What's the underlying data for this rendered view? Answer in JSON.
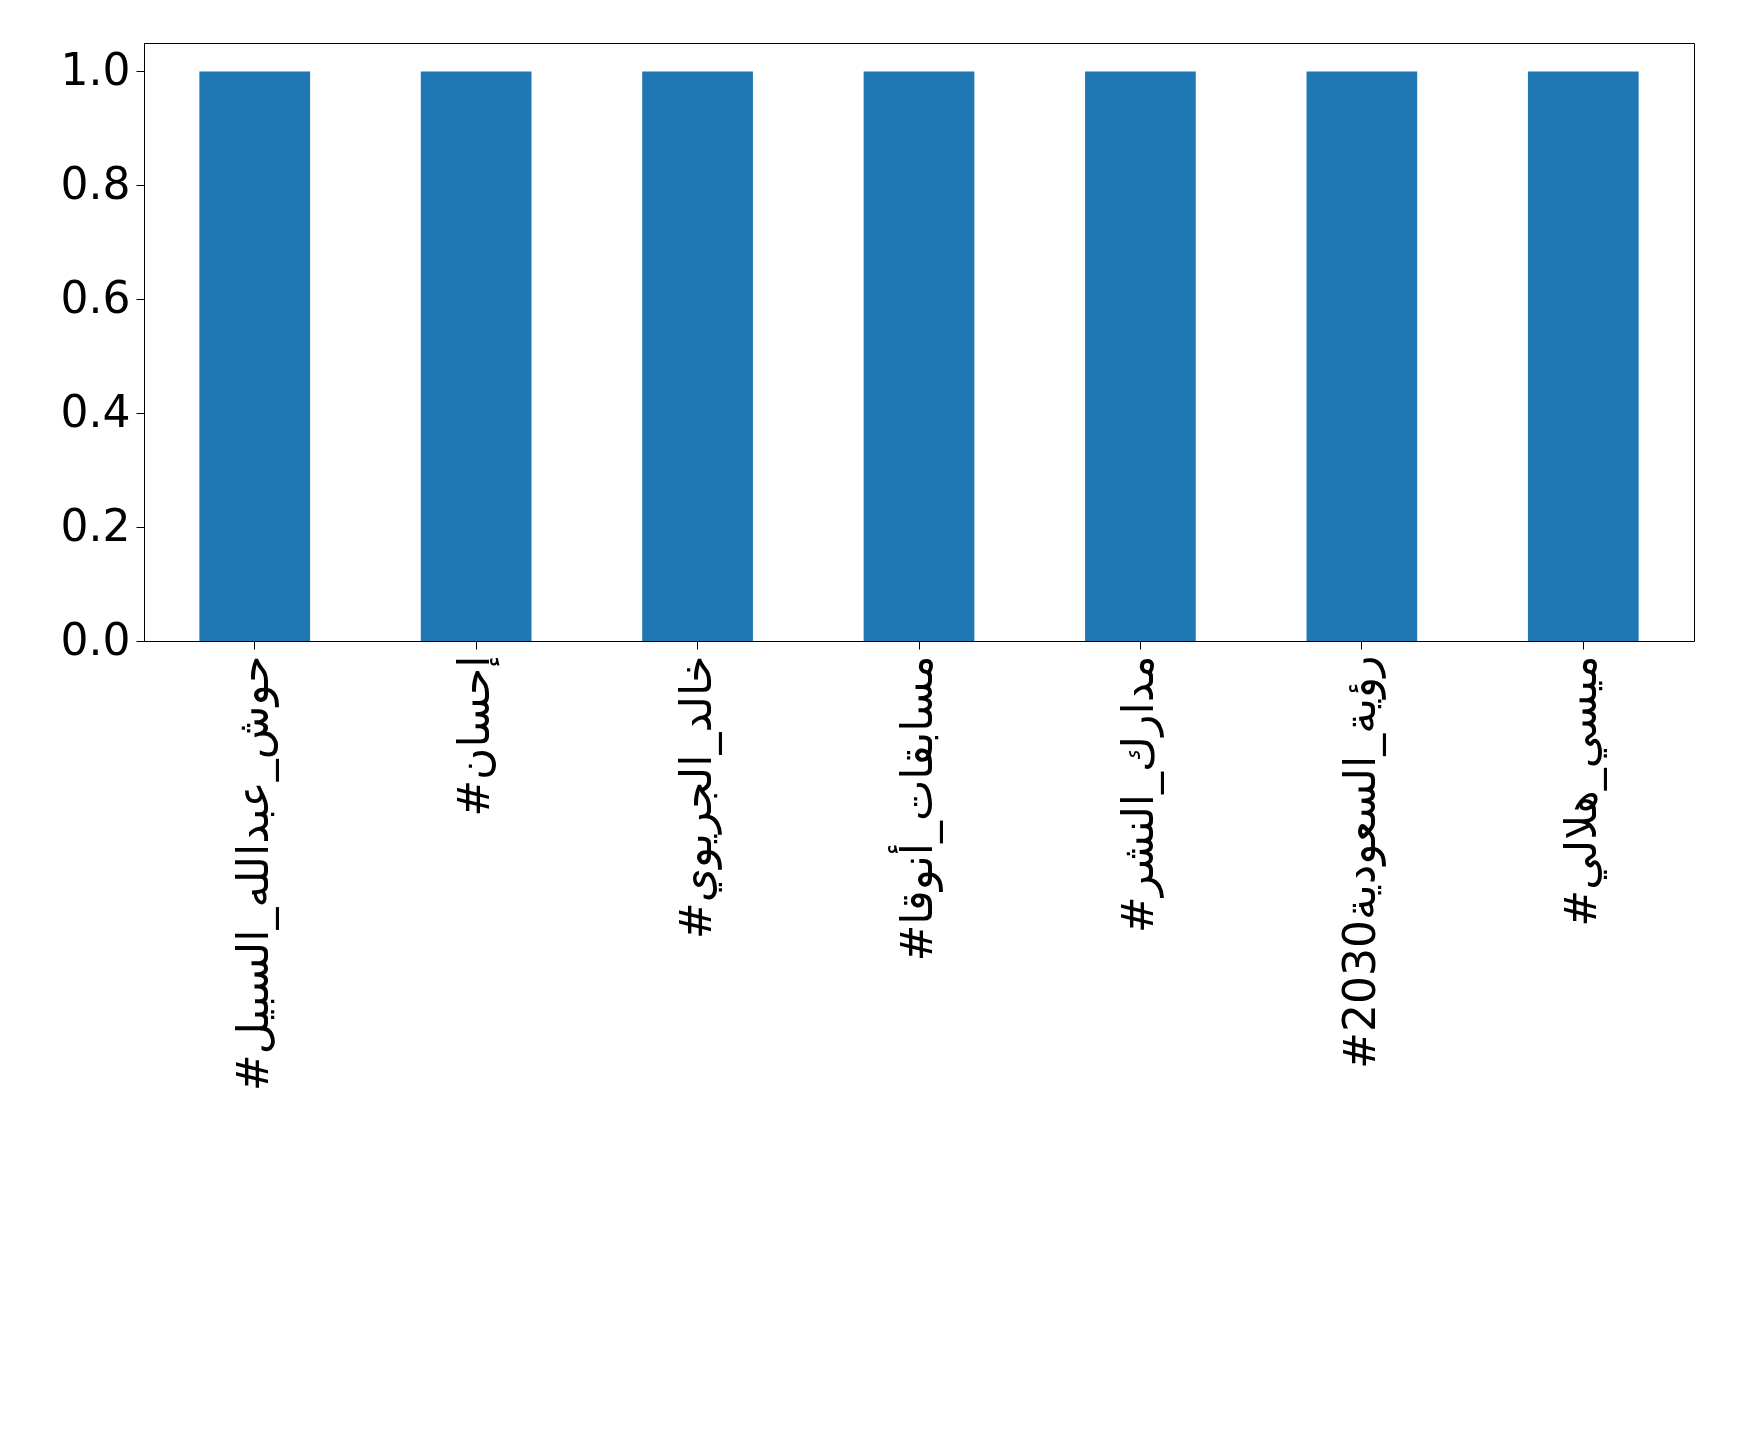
{
  "chart_data": {
    "type": "bar",
    "categories": [
      "#حوش_عبدالله_السبيل",
      "#إحسان",
      "#خالد_الجريوي",
      "#مسابقات_أنوقا",
      "#مدارك_النشر",
      "#رؤية_السعودية2030",
      "#ميسي_هلالي"
    ],
    "values": [
      1,
      1,
      1,
      1,
      1,
      1,
      1
    ],
    "color": "#1f77b4",
    "ylim": [
      0,
      1.05
    ],
    "yticks": [
      {
        "value": 0,
        "label": "0.0"
      },
      {
        "value": 0.2,
        "label": "0.2"
      },
      {
        "value": 0.4,
        "label": "0.4"
      },
      {
        "value": 0.6,
        "label": "0.6"
      },
      {
        "value": 0.8,
        "label": "0.8"
      },
      {
        "value": 1,
        "label": "1.0"
      }
    ],
    "grid": false
  }
}
